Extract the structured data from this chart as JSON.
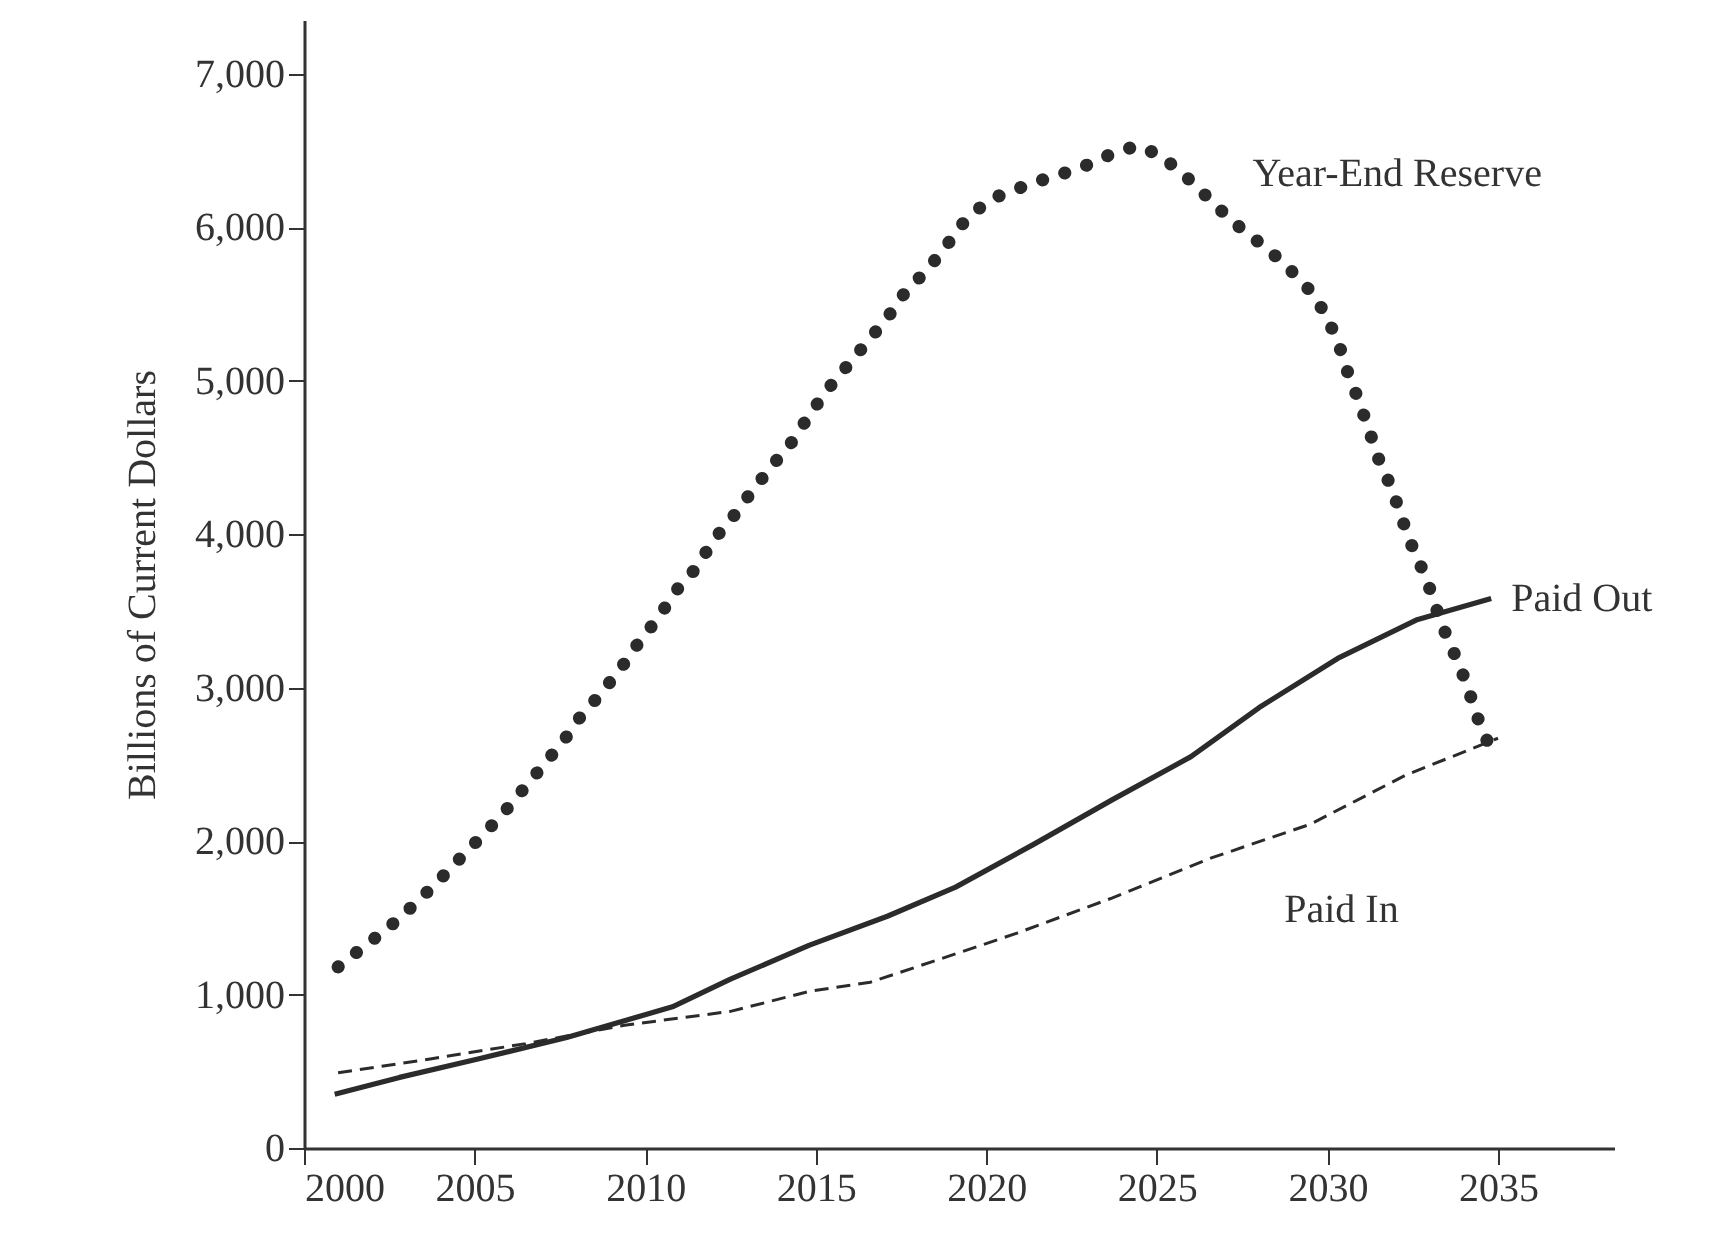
{
  "chart_data": {
    "type": "line",
    "ylabel": "Billions of Current Dollars",
    "xlim": [
      2000,
      2038.4
    ],
    "xticks": [
      2000,
      2005,
      2010,
      2015,
      2020,
      2025,
      2030,
      2035
    ],
    "ylim": [
      0,
      7350
    ],
    "yticks": [
      {
        "value": 0,
        "label": "0"
      },
      {
        "value": 1000,
        "label": "1,000"
      },
      {
        "value": 2000,
        "label": "2,000"
      },
      {
        "value": 3000,
        "label": "3,000"
      },
      {
        "value": 4000,
        "label": "4,000"
      },
      {
        "value": 5000,
        "label": "5,000"
      },
      {
        "value": 6000,
        "label": "6,000"
      },
      {
        "value": 7000,
        "label": "7,000"
      }
    ],
    "series": [
      {
        "name": "Year-End Reserve",
        "color": "#2b2b2b",
        "line_style": "dotted",
        "x": [
          2001.0,
          2001.8,
          2002.5,
          2003.2,
          2003.9,
          2004.5,
          2005.2,
          2005.8,
          2006.4,
          2007.0,
          2007.6,
          2008.1,
          2008.7,
          2009.3,
          2009.8,
          2010.4,
          2010.9,
          2011.5,
          2012.0,
          2012.6,
          2013.1,
          2013.7,
          2014.3,
          2014.8,
          2015.3,
          2015.9,
          2016.5,
          2017.1,
          2017.6,
          2018.3,
          2018.9,
          2019.4,
          2020.1,
          2020.9,
          2021.8,
          2022.7,
          2023.6,
          2024.4,
          2025.1,
          2025.9,
          2026.6,
          2027.2,
          2028.0,
          2028.7,
          2029.4,
          2029.9,
          2030.3,
          2030.6,
          2030.9,
          2031.2,
          2031.5,
          2031.9,
          2032.2,
          2032.5,
          2032.9,
          2033.2,
          2033.5,
          2033.9,
          2034.2,
          2034.5,
          2034.9
        ],
        "values": [
          1180,
          1320,
          1440,
          1580,
          1730,
          1870,
          2030,
          2170,
          2330,
          2490,
          2650,
          2810,
          2960,
          3130,
          3290,
          3460,
          3630,
          3780,
          3960,
          4120,
          4270,
          4440,
          4600,
          4770,
          4930,
          5090,
          5250,
          5410,
          5570,
          5730,
          5900,
          6050,
          6180,
          6250,
          6320,
          6380,
          6470,
          6530,
          6470,
          6320,
          6170,
          6040,
          5900,
          5770,
          5610,
          5450,
          5260,
          5050,
          4880,
          4690,
          4490,
          4290,
          4090,
          3910,
          3710,
          3510,
          3330,
          3130,
          2940,
          2740,
          2550
        ]
      },
      {
        "name": "Paid Out",
        "color": "#2b2b2b",
        "line_style": "solid",
        "x": [
          2000.9,
          2002.8,
          2005.1,
          2007.7,
          2010.8,
          2012.5,
          2014.8,
          2017.1,
          2019.1,
          2021.4,
          2023.7,
          2026.0,
          2028.0,
          2030.3,
          2032.6,
          2034.8
        ],
        "values": [
          350,
          460,
          580,
          720,
          920,
          1100,
          1320,
          1510,
          1700,
          1980,
          2270,
          2550,
          2870,
          3190,
          3440,
          3580
        ]
      },
      {
        "name": "Paid In",
        "color": "#2b2b2b",
        "line_style": "dashed",
        "x": [
          2001.0,
          2003.7,
          2006.5,
          2009.4,
          2012.5,
          2014.8,
          2016.6,
          2018.9,
          2020.9,
          2023.7,
          2026.6,
          2029.5,
          2032.3,
          2035.0
        ],
        "values": [
          490,
          580,
          680,
          800,
          890,
          1020,
          1080,
          1250,
          1400,
          1630,
          1890,
          2110,
          2430,
          2670
        ]
      }
    ]
  }
}
